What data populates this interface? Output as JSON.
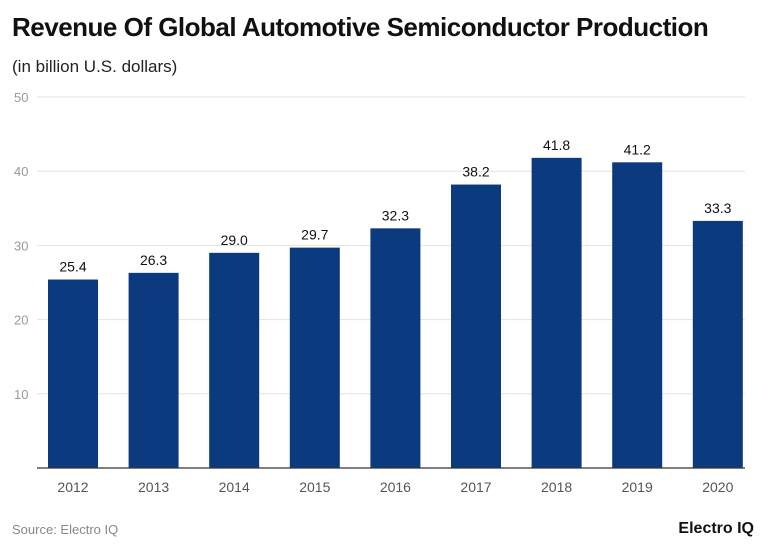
{
  "chart_data": {
    "type": "bar",
    "title": "Revenue Of Global Automotive Semiconductor Production",
    "subtitle": "(in billion U.S. dollars)",
    "categories": [
      "2012",
      "2013",
      "2014",
      "2015",
      "2016",
      "2017",
      "2018",
      "2019",
      "2020"
    ],
    "values": [
      25.4,
      26.3,
      29.0,
      29.7,
      32.3,
      38.2,
      41.8,
      41.2,
      33.3
    ],
    "ylim": [
      0,
      50
    ],
    "yticks": [
      10,
      20,
      30,
      40,
      50
    ],
    "grid": true,
    "bar_color": "#0c3a7e"
  },
  "source": "Source: Electro IQ",
  "logo": "Electro IQ"
}
